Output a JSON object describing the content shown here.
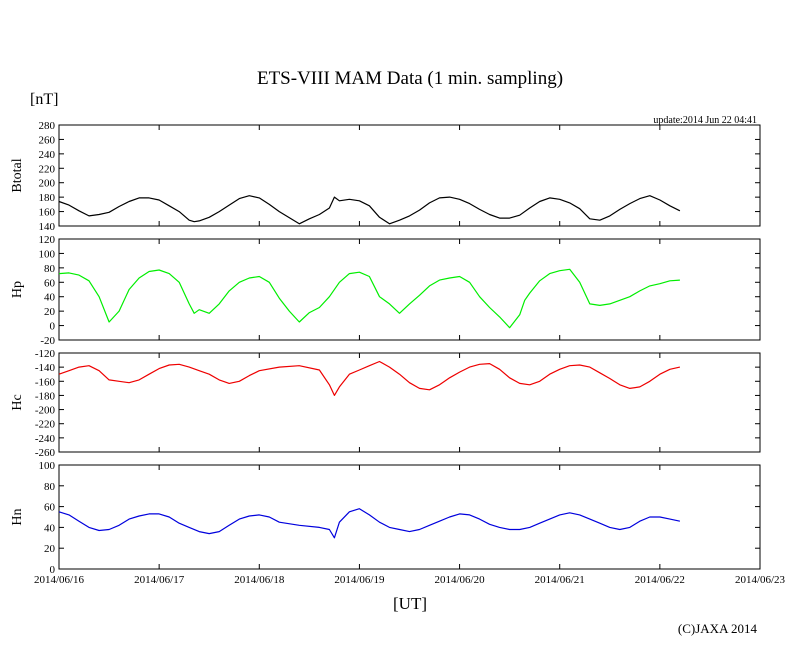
{
  "chart_data": {
    "type": "line",
    "title": "ETS-VIII MAM Data (1 min. sampling)",
    "unit": "[nT]",
    "update": "update:2014 Jun 22 04:41",
    "xlabel": "[UT]",
    "copyright": "(C)JAXA 2014",
    "grid": false,
    "x_ticks": [
      "2014/06/16",
      "2014/06/17",
      "2014/06/18",
      "2014/06/19",
      "2014/06/20",
      "2014/06/21",
      "2014/06/22",
      "2014/06/23"
    ],
    "xlim_days": [
      0,
      7
    ],
    "panels": [
      {
        "name": "Btotal",
        "color": "#000000",
        "ylim": [
          140,
          280
        ],
        "yticks": [
          140,
          160,
          180,
          200,
          220,
          240,
          260,
          280
        ],
        "x": [
          0,
          0.1,
          0.2,
          0.3,
          0.4,
          0.5,
          0.6,
          0.7,
          0.8,
          0.9,
          1.0,
          1.1,
          1.2,
          1.3,
          1.35,
          1.4,
          1.5,
          1.6,
          1.7,
          1.8,
          1.9,
          2.0,
          2.1,
          2.2,
          2.4,
          2.5,
          2.6,
          2.7,
          2.75,
          2.8,
          2.9,
          3.0,
          3.1,
          3.2,
          3.3,
          3.4,
          3.5,
          3.6,
          3.7,
          3.8,
          3.9,
          4.0,
          4.1,
          4.2,
          4.3,
          4.4,
          4.5,
          4.6,
          4.7,
          4.8,
          4.9,
          5.0,
          5.1,
          5.2,
          5.3,
          5.4,
          5.5,
          5.6,
          5.7,
          5.8,
          5.9,
          6.0,
          6.1,
          6.2
        ],
        "y": [
          174,
          169,
          161,
          154,
          156,
          159,
          167,
          174,
          179,
          179,
          176,
          168,
          160,
          148,
          146,
          147,
          152,
          160,
          169,
          178,
          182,
          179,
          170,
          160,
          143,
          150,
          156,
          165,
          180,
          175,
          177,
          175,
          168,
          152,
          143,
          148,
          154,
          162,
          172,
          179,
          180,
          177,
          171,
          163,
          156,
          151,
          151,
          155,
          165,
          174,
          179,
          177,
          172,
          164,
          150,
          148,
          154,
          163,
          171,
          178,
          182,
          176,
          168,
          161
        ]
      },
      {
        "name": "Hp",
        "color": "#00ee00",
        "ylim": [
          -20,
          120
        ],
        "yticks": [
          -20,
          0,
          20,
          40,
          60,
          80,
          100,
          120
        ],
        "x": [
          0,
          0.1,
          0.2,
          0.3,
          0.4,
          0.5,
          0.6,
          0.7,
          0.8,
          0.9,
          1.0,
          1.1,
          1.2,
          1.3,
          1.35,
          1.4,
          1.5,
          1.6,
          1.7,
          1.8,
          1.9,
          2.0,
          2.1,
          2.2,
          2.3,
          2.4,
          2.5,
          2.6,
          2.7,
          2.8,
          2.9,
          3.0,
          3.1,
          3.2,
          3.3,
          3.4,
          3.5,
          3.6,
          3.7,
          3.8,
          3.9,
          4.0,
          4.1,
          4.2,
          4.3,
          4.4,
          4.5,
          4.6,
          4.65,
          4.7,
          4.8,
          4.9,
          5.0,
          5.1,
          5.2,
          5.3,
          5.4,
          5.5,
          5.6,
          5.7,
          5.8,
          5.9,
          6.0,
          6.1,
          6.2
        ],
        "y": [
          72,
          73,
          70,
          62,
          40,
          5,
          20,
          50,
          66,
          75,
          77,
          72,
          60,
          30,
          17,
          22,
          17,
          30,
          48,
          60,
          66,
          68,
          60,
          38,
          20,
          5,
          18,
          25,
          40,
          60,
          72,
          74,
          68,
          40,
          30,
          17,
          30,
          42,
          55,
          63,
          66,
          68,
          60,
          40,
          25,
          12,
          -3,
          15,
          35,
          45,
          62,
          72,
          76,
          78,
          60,
          30,
          28,
          30,
          35,
          40,
          48,
          55,
          58,
          62,
          63
        ]
      },
      {
        "name": "Hc",
        "color": "#ee0000",
        "ylim": [
          -260,
          -120
        ],
        "yticks": [
          -260,
          -240,
          -220,
          -200,
          -180,
          -160,
          -140,
          -120
        ],
        "x": [
          0,
          0.1,
          0.2,
          0.3,
          0.4,
          0.5,
          0.6,
          0.7,
          0.8,
          0.9,
          1.0,
          1.1,
          1.2,
          1.3,
          1.4,
          1.5,
          1.6,
          1.7,
          1.8,
          1.9,
          2.0,
          2.2,
          2.4,
          2.6,
          2.7,
          2.75,
          2.8,
          2.9,
          3.0,
          3.1,
          3.2,
          3.3,
          3.4,
          3.5,
          3.6,
          3.7,
          3.8,
          3.9,
          4.0,
          4.1,
          4.2,
          4.3,
          4.4,
          4.5,
          4.6,
          4.7,
          4.8,
          4.9,
          5.0,
          5.1,
          5.2,
          5.3,
          5.4,
          5.5,
          5.6,
          5.7,
          5.8,
          5.9,
          6.0,
          6.1,
          6.2
        ],
        "y": [
          -150,
          -145,
          -140,
          -138,
          -145,
          -158,
          -160,
          -162,
          -158,
          -150,
          -142,
          -137,
          -136,
          -140,
          -145,
          -150,
          -158,
          -163,
          -160,
          -152,
          -145,
          -140,
          -138,
          -144,
          -165,
          -180,
          -168,
          -150,
          -144,
          -138,
          -132,
          -140,
          -150,
          -162,
          -170,
          -172,
          -165,
          -155,
          -147,
          -140,
          -136,
          -135,
          -143,
          -155,
          -163,
          -165,
          -160,
          -150,
          -143,
          -138,
          -137,
          -140,
          -148,
          -156,
          -165,
          -170,
          -168,
          -160,
          -150,
          -143,
          -140
        ]
      },
      {
        "name": "Hn",
        "color": "#0000dd",
        "ylim": [
          0,
          100
        ],
        "yticks": [
          0,
          20,
          40,
          60,
          80,
          100
        ],
        "x": [
          0,
          0.1,
          0.2,
          0.3,
          0.4,
          0.5,
          0.6,
          0.7,
          0.8,
          0.9,
          1.0,
          1.1,
          1.2,
          1.3,
          1.4,
          1.5,
          1.6,
          1.7,
          1.8,
          1.9,
          2.0,
          2.1,
          2.2,
          2.4,
          2.6,
          2.7,
          2.75,
          2.8,
          2.9,
          3.0,
          3.1,
          3.2,
          3.3,
          3.4,
          3.5,
          3.6,
          3.7,
          3.8,
          3.9,
          4.0,
          4.1,
          4.2,
          4.3,
          4.4,
          4.5,
          4.6,
          4.7,
          4.8,
          4.9,
          5.0,
          5.1,
          5.2,
          5.3,
          5.4,
          5.5,
          5.6,
          5.7,
          5.8,
          5.9,
          6.0,
          6.1,
          6.2
        ],
        "y": [
          55,
          52,
          46,
          40,
          37,
          38,
          42,
          48,
          51,
          53,
          53,
          50,
          44,
          40,
          36,
          34,
          36,
          42,
          48,
          51,
          52,
          50,
          45,
          42,
          40,
          38,
          30,
          45,
          55,
          58,
          52,
          45,
          40,
          38,
          36,
          38,
          42,
          46,
          50,
          53,
          52,
          48,
          43,
          40,
          38,
          38,
          40,
          44,
          48,
          52,
          54,
          52,
          48,
          44,
          40,
          38,
          40,
          46,
          50,
          50,
          48,
          46
        ]
      }
    ]
  }
}
